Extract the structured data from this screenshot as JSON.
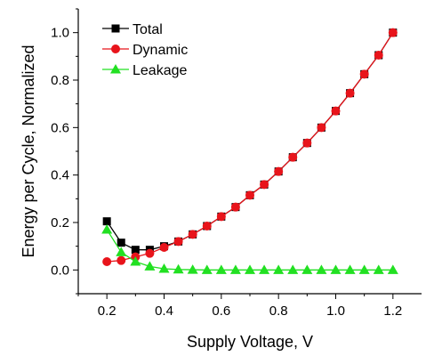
{
  "chart_data": {
    "type": "line",
    "title": "",
    "xlabel": "Supply Voltage, V",
    "ylabel": "Energy per Cycle, Normalized",
    "xlim": [
      0.1,
      1.3
    ],
    "ylim": [
      -0.1,
      1.1
    ],
    "xticks": [
      "0.2",
      "0.4",
      "0.6",
      "0.8",
      "1.0",
      "1.2"
    ],
    "yticks": [
      "0.0",
      "0.2",
      "0.4",
      "0.6",
      "0.8",
      "1.0"
    ],
    "grid": false,
    "legend_position": "top-left",
    "x": [
      0.2,
      0.25,
      0.3,
      0.35,
      0.4,
      0.45,
      0.5,
      0.55,
      0.6,
      0.65,
      0.7,
      0.75,
      0.8,
      0.85,
      0.9,
      0.95,
      1.0,
      1.05,
      1.1,
      1.15,
      1.2
    ],
    "series": [
      {
        "name": "Total",
        "color": "#000000",
        "marker": "square",
        "values": [
          0.205,
          0.115,
          0.085,
          0.085,
          0.1,
          0.12,
          0.15,
          0.185,
          0.225,
          0.265,
          0.315,
          0.36,
          0.415,
          0.475,
          0.535,
          0.6,
          0.67,
          0.745,
          0.825,
          0.905,
          1.0
        ]
      },
      {
        "name": "Dynamic",
        "color": "#e8141b",
        "marker": "circle",
        "values": [
          0.035,
          0.04,
          0.055,
          0.07,
          0.095,
          0.12,
          0.15,
          0.185,
          0.225,
          0.265,
          0.315,
          0.36,
          0.415,
          0.475,
          0.535,
          0.6,
          0.67,
          0.745,
          0.825,
          0.905,
          1.0
        ]
      },
      {
        "name": "Leakage",
        "color": "#22e022",
        "marker": "triangle",
        "values": [
          0.17,
          0.075,
          0.035,
          0.015,
          0.005,
          0.002,
          0.001,
          0.0,
          0.0,
          0.0,
          0.0,
          0.0,
          0.0,
          0.0,
          0.0,
          0.0,
          0.0,
          0.0,
          0.0,
          0.0,
          0.0
        ]
      }
    ]
  }
}
